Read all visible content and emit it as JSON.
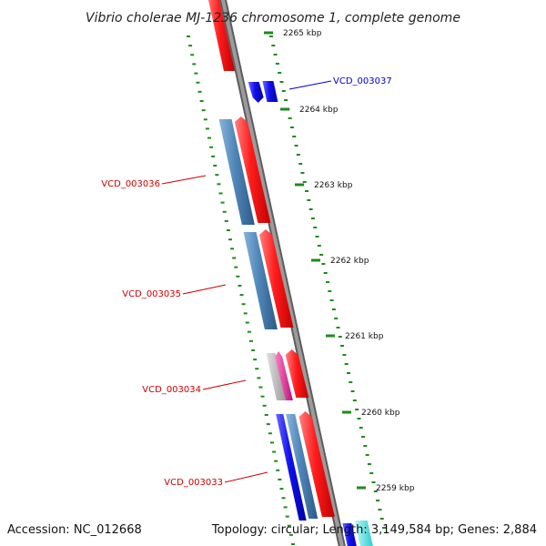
{
  "header": {
    "title": "Vibrio cholerae MJ-1236 chromosome 1, complete genome"
  },
  "footer": {
    "accession": "Accession: NC_012668",
    "summary": "Topology: circular; Length: 3,149,584 bp; Genes: 2,884"
  },
  "ticks": [
    {
      "label": "2265 kbp",
      "kbp": 2265
    },
    {
      "label": "2264 kbp",
      "kbp": 2264
    },
    {
      "label": "2263 kbp",
      "kbp": 2263
    },
    {
      "label": "2262 kbp",
      "kbp": 2262
    },
    {
      "label": "2261 kbp",
      "kbp": 2261
    },
    {
      "label": "2260 kbp",
      "kbp": 2260
    },
    {
      "label": "2259 kbp",
      "kbp": 2259
    }
  ],
  "gene_labels": [
    {
      "id": "VCD_003037",
      "color": "#0000cc",
      "side": "right"
    },
    {
      "id": "VCD_003036",
      "color": "#cc0000",
      "side": "left"
    },
    {
      "id": "VCD_003035",
      "color": "#cc0000",
      "side": "left"
    },
    {
      "id": "VCD_003034",
      "color": "#cc0000",
      "side": "left"
    },
    {
      "id": "VCD_003033",
      "color": "#cc0000",
      "side": "left"
    }
  ],
  "colors": {
    "backbone": "#8a8a8a",
    "reverse_strand_gene": "#ff2a2a",
    "forward_strand_gene": "#1515ee",
    "steel_feature": "#4f86b8",
    "magenta_feature": "#e0208f",
    "gray_feature": "#b9b9b9",
    "cyan_feature": "#33dddd",
    "dotted_ring": "#1e8a1e"
  }
}
